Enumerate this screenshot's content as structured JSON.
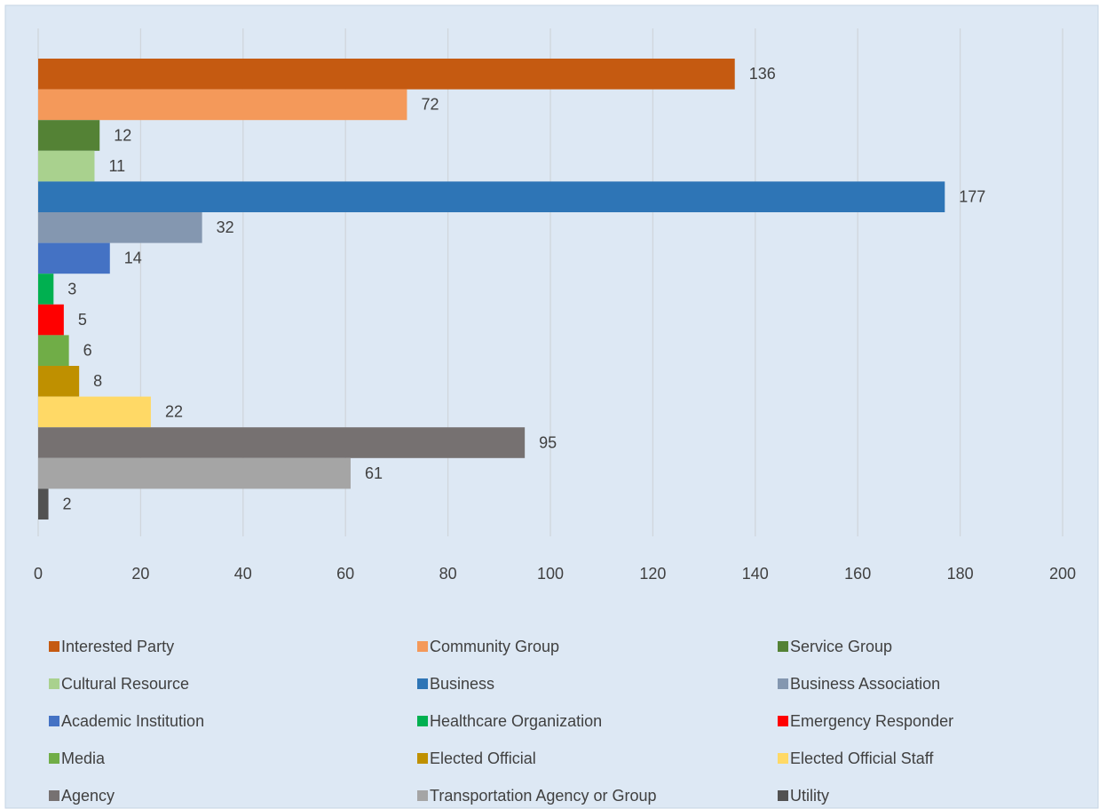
{
  "chart_data": {
    "type": "bar",
    "orientation": "horizontal",
    "series": [
      {
        "name": "Interested Party",
        "color": "#c55a11",
        "values": [
          136
        ]
      },
      {
        "name": "Community Group",
        "color": "#f4995a",
        "values": [
          72
        ]
      },
      {
        "name": "Service Group",
        "color": "#548235",
        "values": [
          12
        ]
      },
      {
        "name": "Cultural Resource",
        "color": "#a9d18e",
        "values": [
          11
        ]
      },
      {
        "name": "Business",
        "color": "#2e75b6",
        "values": [
          177
        ]
      },
      {
        "name": "Business Association",
        "color": "#8497b0",
        "values": [
          32
        ]
      },
      {
        "name": "Academic Institution",
        "color": "#4472c4",
        "values": [
          14
        ]
      },
      {
        "name": "Healthcare Organization",
        "color": "#00b050",
        "values": [
          3
        ]
      },
      {
        "name": "Emergency Responder",
        "color": "#ff0000",
        "values": [
          5
        ]
      },
      {
        "name": "Media",
        "color": "#70ad47",
        "values": [
          6
        ]
      },
      {
        "name": "Elected Official",
        "color": "#bf9000",
        "values": [
          8
        ]
      },
      {
        "name": "Elected Official Staff",
        "color": "#ffd966",
        "values": [
          22
        ]
      },
      {
        "name": "Agency",
        "color": "#767171",
        "values": [
          95
        ]
      },
      {
        "name": "Transportation Agency or Group",
        "color": "#a5a5a5",
        "values": [
          61
        ]
      },
      {
        "name": "Utility",
        "color": "#525252",
        "values": [
          2
        ]
      }
    ],
    "xlim": [
      0,
      200
    ],
    "xticks": [
      0,
      20,
      40,
      60,
      80,
      100,
      120,
      140,
      160,
      180,
      200
    ],
    "grid": true,
    "legend": "bottom",
    "data_labels": true
  }
}
